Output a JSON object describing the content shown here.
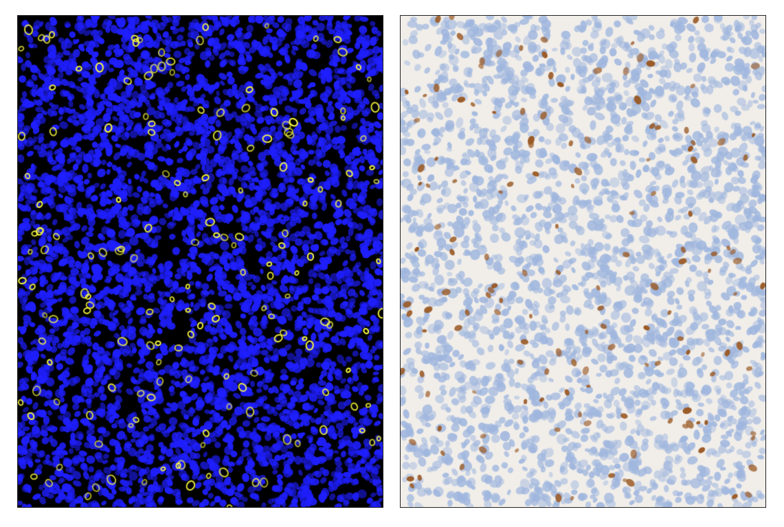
{
  "panels": [
    {
      "type": "immunofluorescence",
      "background_color": "#000000",
      "nuclei_color": "#1f1fff",
      "marker_color": "#ffff40"
    },
    {
      "type": "immunohistochemistry",
      "background_color": "#f1eeea",
      "nuclei_color": "#9fb6de",
      "marker_color": "#9a5a26"
    }
  ]
}
